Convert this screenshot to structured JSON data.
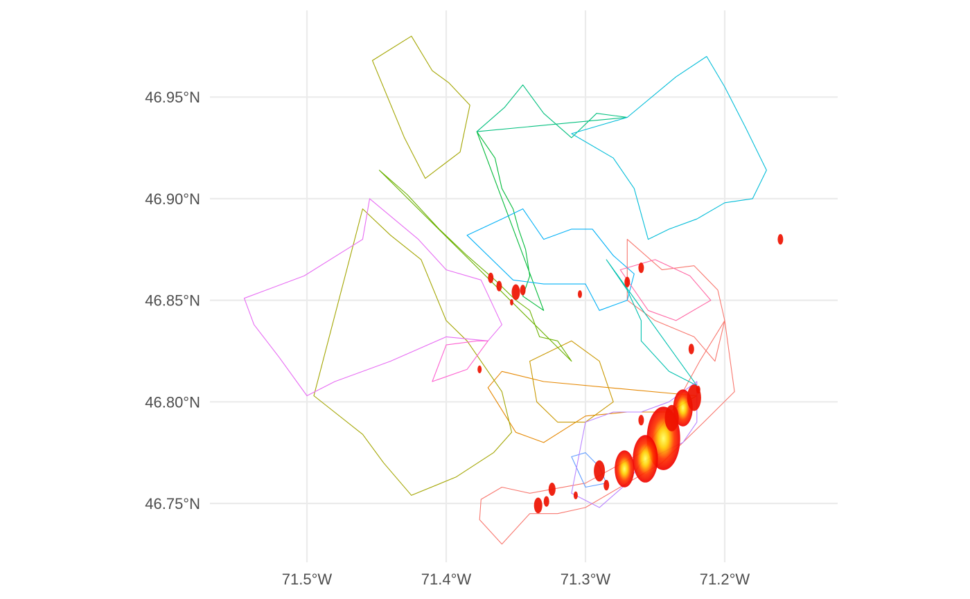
{
  "chart_data": {
    "type": "map",
    "projection": "lon-lat",
    "xlim": [
      -71.57,
      -71.11
    ],
    "ylim": [
      46.716,
      46.988
    ],
    "x_ticks": [
      {
        "value": -71.5,
        "label": "71.5°W"
      },
      {
        "value": -71.4,
        "label": "71.4°W"
      },
      {
        "value": -71.3,
        "label": "71.3°W"
      },
      {
        "value": -71.2,
        "label": "71.2°W"
      }
    ],
    "y_ticks": [
      {
        "value": 46.75,
        "label": "46.75°N"
      },
      {
        "value": 46.8,
        "label": "46.80°N"
      },
      {
        "value": 46.85,
        "label": "46.85°N"
      },
      {
        "value": 46.9,
        "label": "46.90°N"
      },
      {
        "value": 46.95,
        "label": "46.95°N"
      }
    ],
    "grid": true,
    "legend": "none",
    "district_outlines": [
      {
        "color": "#f8766d",
        "points": [
          [
            -71.27,
            46.88
          ],
          [
            -71.245,
            46.865
          ],
          [
            -71.222,
            46.867
          ],
          [
            -71.205,
            46.855
          ],
          [
            -71.2,
            46.84
          ],
          [
            -71.207,
            46.82
          ],
          [
            -71.222,
            46.832
          ],
          [
            -71.25,
            46.84
          ],
          [
            -71.27,
            46.85
          ]
        ]
      },
      {
        "color": "#f8766d",
        "points": [
          [
            -71.2,
            46.84
          ],
          [
            -71.193,
            46.805
          ],
          [
            -71.215,
            46.79
          ],
          [
            -71.245,
            46.77
          ],
          [
            -71.275,
            46.758
          ],
          [
            -71.3,
            46.748
          ],
          [
            -71.32,
            46.745
          ],
          [
            -71.34,
            46.745
          ],
          [
            -71.36,
            46.73
          ],
          [
            -71.376,
            46.742
          ],
          [
            -71.375,
            46.752
          ],
          [
            -71.36,
            46.758
          ],
          [
            -71.34,
            46.755
          ],
          [
            -71.3,
            46.76
          ],
          [
            -71.26,
            46.775
          ],
          [
            -71.238,
            46.795
          ],
          [
            -71.218,
            46.82
          ]
        ]
      },
      {
        "color": "#e58700",
        "points": [
          [
            -71.22,
            46.803
          ],
          [
            -71.24,
            46.795
          ],
          [
            -71.27,
            46.795
          ],
          [
            -71.3,
            46.793
          ],
          [
            -71.33,
            46.78
          ],
          [
            -71.35,
            46.785
          ],
          [
            -71.37,
            46.807
          ],
          [
            -71.36,
            46.815
          ],
          [
            -71.33,
            46.81
          ]
        ]
      },
      {
        "color": "#c99800",
        "points": [
          [
            -71.28,
            46.8
          ],
          [
            -71.3,
            46.79
          ],
          [
            -71.32,
            46.79
          ],
          [
            -71.335,
            46.8
          ],
          [
            -71.34,
            46.82
          ],
          [
            -71.31,
            46.83
          ],
          [
            -71.29,
            46.82
          ]
        ]
      },
      {
        "color": "#a3a500",
        "points": [
          [
            -71.453,
            46.968
          ],
          [
            -71.425,
            46.98
          ],
          [
            -71.41,
            46.963
          ],
          [
            -71.398,
            46.957
          ],
          [
            -71.383,
            46.946
          ],
          [
            -71.39,
            46.923
          ],
          [
            -71.415,
            46.91
          ],
          [
            -71.43,
            46.93
          ]
        ]
      },
      {
        "color": "#a3a500",
        "points": [
          [
            -71.495,
            46.803
          ],
          [
            -71.46,
            46.784
          ],
          [
            -71.445,
            46.77
          ],
          [
            -71.425,
            46.754
          ],
          [
            -71.393,
            46.763
          ],
          [
            -71.366,
            46.775
          ],
          [
            -71.353,
            46.785
          ],
          [
            -71.36,
            46.805
          ],
          [
            -71.372,
            46.817
          ],
          [
            -71.385,
            46.83
          ],
          [
            -71.4,
            46.84
          ],
          [
            -71.418,
            46.87
          ],
          [
            -71.44,
            46.882
          ],
          [
            -71.46,
            46.895
          ]
        ]
      },
      {
        "color": "#6bb100",
        "points": [
          [
            -71.448,
            46.914
          ],
          [
            -71.428,
            46.902
          ],
          [
            -71.405,
            46.885
          ],
          [
            -71.385,
            46.872
          ],
          [
            -71.365,
            46.86
          ],
          [
            -71.35,
            46.85
          ],
          [
            -71.34,
            46.845
          ],
          [
            -71.333,
            46.832
          ],
          [
            -71.32,
            46.83
          ],
          [
            -71.31,
            46.82
          ]
        ]
      },
      {
        "color": "#00ba38",
        "points": [
          [
            -71.378,
            46.933
          ],
          [
            -71.365,
            46.92
          ],
          [
            -71.36,
            46.905
          ],
          [
            -71.352,
            46.895
          ],
          [
            -71.348,
            46.885
          ],
          [
            -71.343,
            46.875
          ],
          [
            -71.34,
            46.862
          ],
          [
            -71.345,
            46.852
          ],
          [
            -71.33,
            46.845
          ]
        ]
      },
      {
        "color": "#00bf7d",
        "points": [
          [
            -71.378,
            46.933
          ],
          [
            -71.358,
            46.945
          ],
          [
            -71.345,
            46.956
          ],
          [
            -71.33,
            46.942
          ],
          [
            -71.31,
            46.93
          ],
          [
            -71.292,
            46.942
          ],
          [
            -71.27,
            46.94
          ]
        ]
      },
      {
        "color": "#00c0af",
        "points": [
          [
            -71.285,
            46.87
          ],
          [
            -71.27,
            46.855
          ],
          [
            -71.26,
            46.84
          ],
          [
            -71.26,
            46.83
          ],
          [
            -71.24,
            46.815
          ],
          [
            -71.22,
            46.808
          ]
        ]
      },
      {
        "color": "#00bcd8",
        "points": [
          [
            -71.27,
            46.94
          ],
          [
            -71.235,
            46.96
          ],
          [
            -71.213,
            46.97
          ],
          [
            -71.2,
            46.955
          ],
          [
            -71.185,
            46.935
          ],
          [
            -71.17,
            46.914
          ],
          [
            -71.18,
            46.9
          ],
          [
            -71.2,
            46.898
          ],
          [
            -71.22,
            46.89
          ],
          [
            -71.24,
            46.885
          ],
          [
            -71.255,
            46.88
          ],
          [
            -71.265,
            46.905
          ],
          [
            -71.28,
            46.92
          ],
          [
            -71.31,
            46.932
          ]
        ]
      },
      {
        "color": "#00b0f6",
        "points": [
          [
            -71.385,
            46.882
          ],
          [
            -71.36,
            46.89
          ],
          [
            -71.345,
            46.895
          ],
          [
            -71.33,
            46.88
          ],
          [
            -71.31,
            46.885
          ],
          [
            -71.295,
            46.885
          ],
          [
            -71.28,
            46.872
          ],
          [
            -71.265,
            46.863
          ],
          [
            -71.27,
            46.85
          ],
          [
            -71.29,
            46.845
          ],
          [
            -71.3,
            46.858
          ],
          [
            -71.33,
            46.858
          ],
          [
            -71.352,
            46.86
          ]
        ]
      },
      {
        "color": "#619cff",
        "points": [
          [
            -71.31,
            46.773
          ],
          [
            -71.3,
            46.775
          ],
          [
            -71.29,
            46.768
          ],
          [
            -71.285,
            46.76
          ],
          [
            -71.3,
            46.758
          ]
        ]
      },
      {
        "color": "#b983ff",
        "points": [
          [
            -71.3,
            46.79
          ],
          [
            -71.28,
            46.795
          ],
          [
            -71.26,
            46.795
          ],
          [
            -71.24,
            46.8
          ],
          [
            -71.22,
            46.81
          ],
          [
            -71.22,
            46.79
          ],
          [
            -71.23,
            46.78
          ],
          [
            -71.26,
            46.77
          ],
          [
            -71.27,
            46.76
          ],
          [
            -71.29,
            46.748
          ],
          [
            -71.31,
            46.755
          ]
        ]
      },
      {
        "color": "#e76bf3",
        "points": [
          [
            -71.545,
            46.851
          ],
          [
            -71.502,
            46.862
          ],
          [
            -71.46,
            46.88
          ],
          [
            -71.455,
            46.9
          ],
          [
            -71.42,
            46.88
          ],
          [
            -71.4,
            46.865
          ],
          [
            -71.375,
            46.86
          ],
          [
            -71.36,
            46.838
          ],
          [
            -71.37,
            46.83
          ],
          [
            -71.4,
            46.832
          ],
          [
            -71.44,
            46.82
          ],
          [
            -71.48,
            46.81
          ],
          [
            -71.5,
            46.803
          ],
          [
            -71.52,
            46.822
          ],
          [
            -71.538,
            46.838
          ]
        ]
      },
      {
        "color": "#fd61d1",
        "points": [
          [
            -71.378,
            46.83
          ],
          [
            -71.4,
            46.828
          ],
          [
            -71.41,
            46.81
          ],
          [
            -71.385,
            46.816
          ],
          [
            -71.37,
            46.83
          ]
        ]
      },
      {
        "color": "#ff67a4",
        "points": [
          [
            -71.275,
            46.865
          ],
          [
            -71.25,
            46.87
          ],
          [
            -71.225,
            46.862
          ],
          [
            -71.21,
            46.85
          ],
          [
            -71.235,
            46.84
          ],
          [
            -71.255,
            46.845
          ]
        ]
      }
    ],
    "hotspots": [
      {
        "lon": -71.244,
        "lat": 46.782,
        "intensity": 1.0,
        "size": 0.012
      },
      {
        "lon": -71.257,
        "lat": 46.772,
        "intensity": 0.85,
        "size": 0.009
      },
      {
        "lon": -71.23,
        "lat": 46.797,
        "intensity": 0.8,
        "size": 0.007
      },
      {
        "lon": -71.272,
        "lat": 46.767,
        "intensity": 0.7,
        "size": 0.007
      },
      {
        "lon": -71.222,
        "lat": 46.802,
        "intensity": 0.6,
        "size": 0.005
      },
      {
        "lon": -71.238,
        "lat": 46.792,
        "intensity": 0.6,
        "size": 0.005
      },
      {
        "lon": -71.29,
        "lat": 46.766,
        "intensity": 0.5,
        "size": 0.004
      },
      {
        "lon": -71.35,
        "lat": 46.854,
        "intensity": 0.55,
        "size": 0.003
      },
      {
        "lon": -71.362,
        "lat": 46.857,
        "intensity": 0.45,
        "size": 0.002
      },
      {
        "lon": -71.368,
        "lat": 46.861,
        "intensity": 0.45,
        "size": 0.002
      },
      {
        "lon": -71.345,
        "lat": 46.855,
        "intensity": 0.4,
        "size": 0.002
      },
      {
        "lon": -71.304,
        "lat": 46.853,
        "intensity": 0.35,
        "size": 0.0015
      },
      {
        "lon": -71.27,
        "lat": 46.859,
        "intensity": 0.4,
        "size": 0.002
      },
      {
        "lon": -71.26,
        "lat": 46.866,
        "intensity": 0.4,
        "size": 0.002
      },
      {
        "lon": -71.16,
        "lat": 46.88,
        "intensity": 0.4,
        "size": 0.002
      },
      {
        "lon": -71.224,
        "lat": 46.826,
        "intensity": 0.4,
        "size": 0.002
      },
      {
        "lon": -71.219,
        "lat": 46.806,
        "intensity": 0.35,
        "size": 0.0015
      },
      {
        "lon": -71.26,
        "lat": 46.791,
        "intensity": 0.4,
        "size": 0.002
      },
      {
        "lon": -71.285,
        "lat": 46.759,
        "intensity": 0.45,
        "size": 0.002
      },
      {
        "lon": -71.324,
        "lat": 46.757,
        "intensity": 0.45,
        "size": 0.0025
      },
      {
        "lon": -71.334,
        "lat": 46.749,
        "intensity": 0.5,
        "size": 0.003
      },
      {
        "lon": -71.328,
        "lat": 46.751,
        "intensity": 0.4,
        "size": 0.002
      },
      {
        "lon": -71.307,
        "lat": 46.754,
        "intensity": 0.35,
        "size": 0.0015
      },
      {
        "lon": -71.376,
        "lat": 46.816,
        "intensity": 0.35,
        "size": 0.0015
      },
      {
        "lon": -71.353,
        "lat": 46.849,
        "intensity": 0.3,
        "size": 0.0012
      }
    ]
  }
}
